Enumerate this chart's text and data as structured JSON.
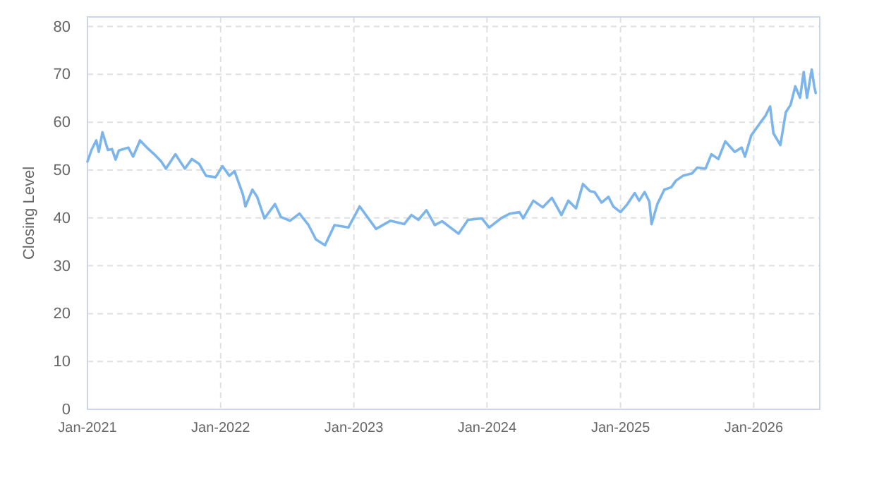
{
  "chart_data": {
    "type": "line",
    "ylabel": "Closing Level",
    "xlim": [
      "2021-01-01",
      "2026-07-01"
    ],
    "ylim": [
      0,
      82
    ],
    "xticks": [
      {
        "value": "2021-01-01",
        "label": "Jan-2021"
      },
      {
        "value": "2022-01-01",
        "label": "Jan-2022"
      },
      {
        "value": "2023-01-01",
        "label": "Jan-2023"
      },
      {
        "value": "2024-01-01",
        "label": "Jan-2024"
      },
      {
        "value": "2025-01-01",
        "label": "Jan-2025"
      },
      {
        "value": "2026-01-01",
        "label": "Jan-2026"
      }
    ],
    "yticks": [
      0,
      10,
      20,
      30,
      40,
      50,
      60,
      70,
      80
    ],
    "grid": true,
    "marker": "none",
    "line_style": "solid",
    "x": [
      "2021-01-01",
      "2021-01-12",
      "2021-01-25",
      "2021-02-01",
      "2021-02-11",
      "2021-02-26",
      "2021-03-09",
      "2021-03-19",
      "2021-03-28",
      "2021-04-23",
      "2021-05-06",
      "2021-05-25",
      "2021-06-17",
      "2021-07-03",
      "2021-07-22",
      "2021-08-04",
      "2021-08-30",
      "2021-09-25",
      "2021-10-14",
      "2021-11-03",
      "2021-11-22",
      "2021-12-18",
      "2022-01-06",
      "2022-01-25",
      "2022-02-08",
      "2022-03-03",
      "2022-03-10",
      "2022-03-29",
      "2022-04-11",
      "2022-05-01",
      "2022-05-30",
      "2022-06-15",
      "2022-07-10",
      "2022-08-05",
      "2022-08-30",
      "2022-09-19",
      "2022-10-14",
      "2022-11-09",
      "2022-12-17",
      "2023-01-17",
      "2023-03-03",
      "2023-04-11",
      "2023-05-19",
      "2023-06-08",
      "2023-06-27",
      "2023-07-19",
      "2023-08-11",
      "2023-08-31",
      "2023-10-15",
      "2023-11-10",
      "2023-12-18",
      "2024-01-07",
      "2024-02-08",
      "2024-03-04",
      "2024-03-30",
      "2024-04-09",
      "2024-05-07",
      "2024-06-02",
      "2024-06-27",
      "2024-07-23",
      "2024-08-11",
      "2024-09-01",
      "2024-09-20",
      "2024-10-09",
      "2024-10-22",
      "2024-11-10",
      "2024-11-29",
      "2024-12-12",
      "2025-01-01",
      "2025-01-20",
      "2025-02-09",
      "2025-02-21",
      "2025-03-08",
      "2025-03-21",
      "2025-03-27",
      "2025-04-12",
      "2025-05-01",
      "2025-05-20",
      "2025-06-02",
      "2025-06-21",
      "2025-07-16",
      "2025-07-30",
      "2025-08-22",
      "2025-09-07",
      "2025-09-26",
      "2025-10-15",
      "2025-11-10",
      "2025-11-29",
      "2025-12-08",
      "2025-12-25",
      "2026-01-20",
      "2026-02-02",
      "2026-02-15",
      "2026-02-24",
      "2026-03-15",
      "2026-03-30",
      "2026-04-12",
      "2026-04-25",
      "2026-05-08",
      "2026-05-18",
      "2026-05-27",
      "2026-06-09",
      "2026-06-16",
      "2026-06-20"
    ],
    "series": [
      {
        "color": "#7cb5ec",
        "values": [
          51.8,
          54.2,
          56.2,
          53.8,
          57.9,
          54.2,
          54.4,
          52.2,
          54.1,
          54.7,
          52.8,
          56.2,
          54.4,
          53.3,
          51.8,
          50.3,
          53.3,
          50.3,
          52.3,
          51.3,
          48.8,
          48.5,
          50.8,
          48.8,
          49.8,
          44.9,
          42.4,
          45.9,
          44.4,
          39.9,
          42.9,
          40.2,
          39.4,
          40.9,
          38.5,
          35.5,
          34.3,
          38.5,
          38.0,
          42.4,
          37.7,
          39.4,
          38.7,
          40.6,
          39.6,
          41.6,
          38.5,
          39.3,
          36.7,
          39.6,
          39.9,
          38.0,
          39.9,
          40.9,
          41.2,
          39.9,
          43.6,
          42.2,
          44.2,
          40.6,
          43.6,
          42.0,
          47.1,
          45.6,
          45.4,
          43.2,
          44.4,
          42.4,
          41.2,
          42.9,
          45.2,
          43.6,
          45.4,
          43.4,
          38.7,
          42.9,
          45.9,
          46.4,
          47.8,
          48.8,
          49.3,
          50.5,
          50.3,
          53.3,
          52.3,
          56.0,
          53.8,
          54.7,
          52.8,
          57.2,
          60.0,
          61.3,
          63.3,
          57.7,
          55.2,
          62.1,
          63.6,
          67.5,
          65.1,
          70.5,
          65.1,
          71.0,
          67.5,
          66.1
        ]
      }
    ]
  }
}
